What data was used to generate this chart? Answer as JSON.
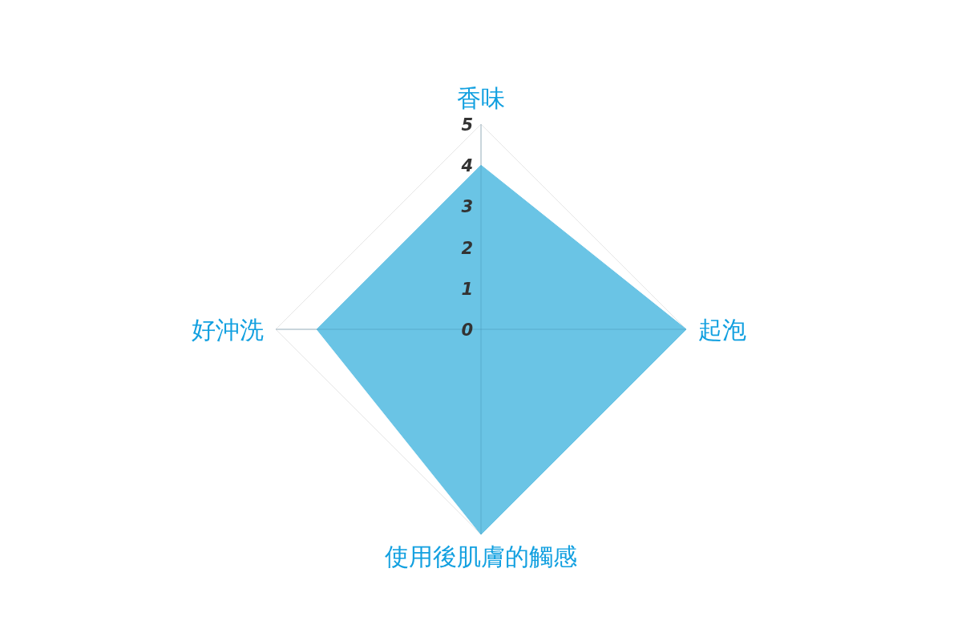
{
  "chart_data": {
    "type": "radar",
    "categories": [
      "香味",
      "起泡",
      "使用後肌膚的觸感",
      "好沖洗"
    ],
    "series": [
      {
        "color": "#6ac4e5",
        "values": [
          4,
          5,
          5,
          4
        ]
      }
    ],
    "ylim": [
      0,
      5
    ],
    "yticks": [
      0,
      1,
      2,
      3,
      4,
      5
    ],
    "grid": true
  }
}
